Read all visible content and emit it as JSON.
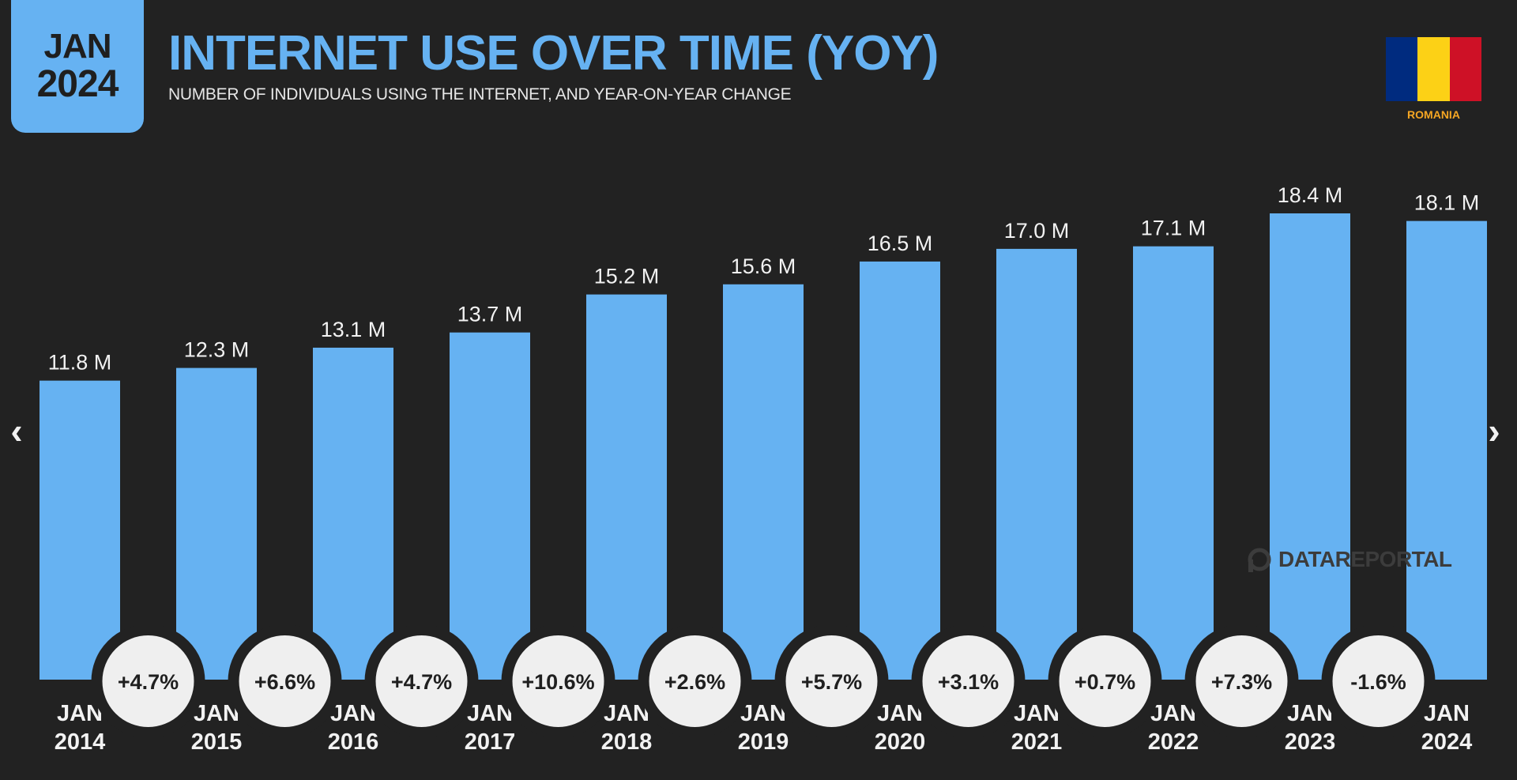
{
  "badge": {
    "month": "JAN",
    "year": "2024"
  },
  "header": {
    "title": "INTERNET USE OVER TIME (YOY)",
    "subtitle": "NUMBER OF INDIVIDUALS USING THE INTERNET, AND YEAR-ON-YEAR CHANGE"
  },
  "flag": {
    "country": "ROMANIA",
    "colors": [
      "#002b7f",
      "#fcd116",
      "#ce1126"
    ]
  },
  "navigation": {
    "prev_icon": "chevron-left-icon",
    "next_icon": "chevron-right-icon",
    "prev_glyph": "‹",
    "next_glyph": "›"
  },
  "watermark": {
    "text": "DATAREPORTAL",
    "icon": "datareportal-logo-icon"
  },
  "colors": {
    "background": "#222222",
    "bar": "#66b2f2",
    "accent_orange": "#f5a623",
    "badge_text": "#1f1f1f",
    "circle_fill": "#efefef"
  },
  "chart_data": {
    "type": "bar",
    "title": "INTERNET USE OVER TIME (YOY)",
    "subtitle": "NUMBER OF INDIVIDUALS USING THE INTERNET, AND YEAR-ON-YEAR CHANGE",
    "categories": [
      [
        "JAN",
        "2014"
      ],
      [
        "JAN",
        "2015"
      ],
      [
        "JAN",
        "2016"
      ],
      [
        "JAN",
        "2017"
      ],
      [
        "JAN",
        "2018"
      ],
      [
        "JAN",
        "2019"
      ],
      [
        "JAN",
        "2020"
      ],
      [
        "JAN",
        "2021"
      ],
      [
        "JAN",
        "2022"
      ],
      [
        "JAN",
        "2023"
      ],
      [
        "JAN",
        "2024"
      ]
    ],
    "values": [
      11.8,
      12.3,
      13.1,
      13.7,
      15.2,
      15.6,
      16.5,
      17.0,
      17.1,
      18.4,
      18.1
    ],
    "value_labels": [
      "11.8 M",
      "12.3 M",
      "13.1 M",
      "13.7 M",
      "15.2 M",
      "15.6 M",
      "16.5 M",
      "17.0 M",
      "17.1 M",
      "18.4 M",
      "18.1 M"
    ],
    "unit": "M",
    "yoy_change": [
      "+4.7%",
      "+6.6%",
      "+4.7%",
      "+10.6%",
      "+2.6%",
      "+5.7%",
      "+3.1%",
      "+0.7%",
      "+7.3%",
      "-1.6%"
    ],
    "ylim": [
      0,
      18.4
    ],
    "grid": false,
    "legend": "none"
  }
}
